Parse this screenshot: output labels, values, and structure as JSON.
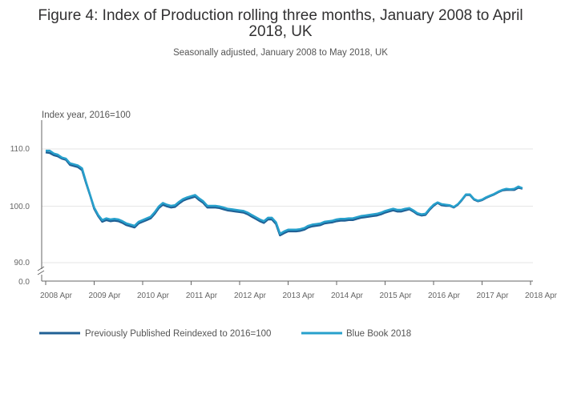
{
  "chart_data": {
    "type": "line",
    "title_line1": "Figure 4: Index of Production rolling three months, January 2008 to April",
    "title_line2": "2018, UK",
    "subtitle": "Seasonally adjusted, January 2008 to May 2018, UK",
    "ylabel": "Index year, 2016=100",
    "y_ticks": [
      "110.0",
      "100.0",
      "90.0",
      "0.0"
    ],
    "x_ticks": [
      "2008 Apr",
      "2009 Apr",
      "2010 Apr",
      "2011 Apr",
      "2012 Apr",
      "2013 Apr",
      "2014 Apr",
      "2015 Apr",
      "2016 Apr",
      "2017 Apr",
      "2018 Apr"
    ],
    "ylim": [
      90,
      110
    ],
    "axis_break": true,
    "x_start": "2008 Apr",
    "x_step_months": 1,
    "series": [
      {
        "name": "Previously Published Reindexed to 2016=100",
        "color": "#206095",
        "values": [
          109.4,
          109.3,
          108.9,
          108.7,
          108.3,
          108.1,
          107.2,
          107.0,
          106.8,
          106.3,
          104.0,
          101.8,
          99.5,
          98.2,
          97.2,
          97.5,
          97.3,
          97.4,
          97.3,
          97.0,
          96.6,
          96.4,
          96.2,
          96.9,
          97.2,
          97.5,
          97.8,
          98.6,
          99.6,
          100.2,
          99.9,
          99.7,
          99.8,
          100.4,
          100.9,
          101.2,
          101.4,
          101.6,
          101.0,
          100.5,
          99.7,
          99.7,
          99.7,
          99.6,
          99.4,
          99.2,
          99.1,
          99.0,
          98.9,
          98.8,
          98.5,
          98.1,
          97.7,
          97.3,
          97.0,
          97.6,
          97.6,
          96.8,
          94.8,
          95.2,
          95.5,
          95.5,
          95.5,
          95.6,
          95.8,
          96.2,
          96.4,
          96.5,
          96.6,
          96.9,
          97.0,
          97.1,
          97.3,
          97.4,
          97.4,
          97.5,
          97.5,
          97.7,
          97.9,
          98.0,
          98.1,
          98.2,
          98.3,
          98.5,
          98.8,
          99.0,
          99.2,
          99.0,
          99.0,
          99.2,
          99.4,
          99.0,
          98.5,
          98.3,
          98.4,
          99.3,
          100.0,
          100.5,
          100.1,
          100.0,
          100.0,
          99.7,
          100.2,
          101.0,
          101.9,
          101.9,
          101.1,
          100.8,
          101.0,
          101.4,
          101.7,
          102.0,
          102.4,
          102.7,
          102.8,
          102.8,
          102.8,
          103.2,
          103.0
        ]
      },
      {
        "name": "Blue Book 2018",
        "color": "#27a0cc",
        "values": [
          109.7,
          109.7,
          109.2,
          109.0,
          108.5,
          108.3,
          107.5,
          107.3,
          107.1,
          106.6,
          104.2,
          101.9,
          99.7,
          98.4,
          97.5,
          97.8,
          97.6,
          97.7,
          97.6,
          97.3,
          96.9,
          96.7,
          96.5,
          97.2,
          97.5,
          97.8,
          98.1,
          98.9,
          99.9,
          100.5,
          100.2,
          100.0,
          100.1,
          100.7,
          101.2,
          101.5,
          101.7,
          101.9,
          101.3,
          100.8,
          100.0,
          100.0,
          100.0,
          99.9,
          99.7,
          99.5,
          99.4,
          99.3,
          99.2,
          99.1,
          98.8,
          98.4,
          98.0,
          97.6,
          97.3,
          97.9,
          97.9,
          97.1,
          95.1,
          95.5,
          95.8,
          95.8,
          95.8,
          95.9,
          96.1,
          96.5,
          96.7,
          96.8,
          96.9,
          97.2,
          97.3,
          97.4,
          97.6,
          97.7,
          97.7,
          97.8,
          97.8,
          98.0,
          98.2,
          98.3,
          98.4,
          98.5,
          98.6,
          98.8,
          99.1,
          99.3,
          99.5,
          99.3,
          99.3,
          99.5,
          99.6,
          99.2,
          98.7,
          98.5,
          98.6,
          99.5,
          100.2,
          100.6,
          100.3,
          100.2,
          100.1,
          99.8,
          100.3,
          101.1,
          102.0,
          102.0,
          101.2,
          100.9,
          101.1,
          101.5,
          101.8,
          102.1,
          102.5,
          102.8,
          103.0,
          102.9,
          103.0,
          103.4,
          103.1
        ]
      }
    ],
    "legend_position": "bottom-left"
  }
}
